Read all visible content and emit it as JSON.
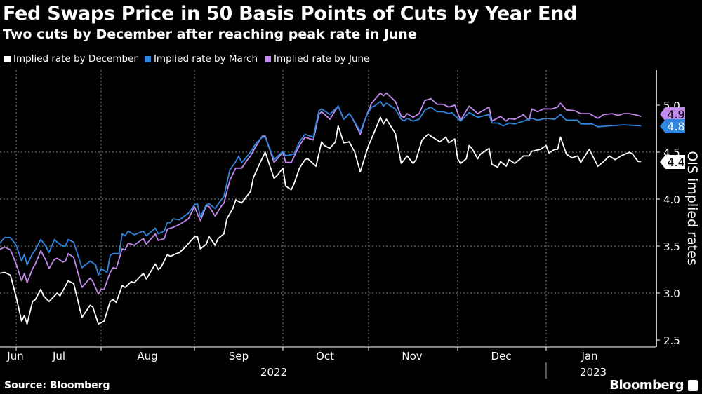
{
  "chart_data": {
    "type": "line",
    "title": "Fed Swaps Price in 50 Basis Points of Cuts by Year End",
    "subtitle": "Two cuts by December after reaching peak rate in June",
    "ylabel": "OIS implied rates",
    "ylim": [
      2.45,
      5.35
    ],
    "yticks": [
      "2.5",
      "3.0",
      "3.5",
      "4.0",
      "4.5",
      "5.0"
    ],
    "xticks": [
      "Jun",
      "Jul",
      "Aug",
      "Sep",
      "Oct",
      "Nov",
      "Dec",
      "Jan"
    ],
    "years": [
      "2022",
      "2023"
    ],
    "grid": true,
    "legend_position": "top-left",
    "series": [
      {
        "name": "Implied rate by December",
        "color": "#ffffff",
        "end_label": "4.4",
        "x": [
          "2022-06-25",
          "2022-06-27",
          "2022-06-29",
          "2022-07-01",
          "2022-07-03",
          "2022-07-04",
          "2022-07-05",
          "2022-07-07",
          "2022-07-08",
          "2022-07-10",
          "2022-07-11",
          "2022-07-13",
          "2022-07-16",
          "2022-07-17",
          "2022-07-20",
          "2022-07-22",
          "2022-07-25",
          "2022-07-28",
          "2022-07-29",
          "2022-07-31",
          "2022-08-02",
          "2022-08-04",
          "2022-08-05",
          "2022-08-06",
          "2022-08-08",
          "2022-08-09",
          "2022-08-11",
          "2022-08-12",
          "2022-08-15",
          "2022-08-16",
          "2022-08-19",
          "2022-08-20",
          "2022-08-21",
          "2022-08-23",
          "2022-08-24",
          "2022-08-26",
          "2022-08-27",
          "2022-08-29",
          "2022-09-01",
          "2022-09-02",
          "2022-09-03",
          "2022-09-05",
          "2022-09-06",
          "2022-09-08",
          "2022-09-09",
          "2022-09-11",
          "2022-09-12",
          "2022-09-14",
          "2022-09-15",
          "2022-09-17",
          "2022-09-19",
          "2022-09-20",
          "2022-09-21",
          "2022-09-23",
          "2022-09-25",
          "2022-09-28",
          "2022-09-29",
          "2022-10-01",
          "2022-10-02",
          "2022-10-04",
          "2022-10-05",
          "2022-10-07",
          "2022-10-09",
          "2022-10-10",
          "2022-10-13",
          "2022-10-15",
          "2022-10-16",
          "2022-10-18",
          "2022-10-20",
          "2022-10-21",
          "2022-10-23",
          "2022-10-25",
          "2022-10-27",
          "2022-10-29",
          "2022-10-31",
          "2022-11-01",
          "2022-11-03",
          "2022-11-05",
          "2022-11-06",
          "2022-11-07",
          "2022-11-10",
          "2022-11-12",
          "2022-11-14",
          "2022-11-16",
          "2022-11-17",
          "2022-11-19",
          "2022-11-21",
          "2022-11-24",
          "2022-11-25",
          "2022-11-27",
          "2022-11-28",
          "2022-11-30",
          "2022-12-01",
          "2022-12-02",
          "2022-12-04",
          "2022-12-05",
          "2022-12-06",
          "2022-12-08",
          "2022-12-09",
          "2022-12-12",
          "2022-12-13",
          "2022-12-15",
          "2022-12-16",
          "2022-12-18",
          "2022-12-19",
          "2022-12-21",
          "2022-12-23",
          "2022-12-24",
          "2022-12-26",
          "2022-12-27",
          "2022-12-30",
          "2023-01-01",
          "2023-01-02",
          "2023-01-04",
          "2023-01-05",
          "2023-01-06",
          "2023-01-08",
          "2023-01-10",
          "2023-01-12",
          "2023-01-13",
          "2023-01-16",
          "2023-01-19",
          "2023-01-21",
          "2023-01-23",
          "2023-01-25",
          "2023-01-27",
          "2023-01-30",
          "2023-01-31",
          "2023-02-02",
          "2023-02-03"
        ],
        "values": [
          3.21,
          3.22,
          3.19,
          2.96,
          2.7,
          2.76,
          2.67,
          2.91,
          2.93,
          3.04,
          2.97,
          2.91,
          3.0,
          2.97,
          3.13,
          3.1,
          2.74,
          2.87,
          2.85,
          2.67,
          2.7,
          2.91,
          2.93,
          2.9,
          3.08,
          3.06,
          3.12,
          3.11,
          3.21,
          3.15,
          3.31,
          3.25,
          3.28,
          3.41,
          3.39,
          3.42,
          3.43,
          3.49,
          3.6,
          3.6,
          3.47,
          3.52,
          3.6,
          3.51,
          3.58,
          3.63,
          3.79,
          3.9,
          3.99,
          3.96,
          4.04,
          4.08,
          4.23,
          4.37,
          4.5,
          4.22,
          4.25,
          4.33,
          4.14,
          4.1,
          4.16,
          4.33,
          4.42,
          4.43,
          4.35,
          4.61,
          4.57,
          4.54,
          4.61,
          4.78,
          4.6,
          4.61,
          4.5,
          4.29,
          4.48,
          4.57,
          4.72,
          4.87,
          4.8,
          4.85,
          4.7,
          4.38,
          4.46,
          4.38,
          4.42,
          4.63,
          4.69,
          4.63,
          4.61,
          4.66,
          4.6,
          4.64,
          4.43,
          4.38,
          4.43,
          4.57,
          4.54,
          4.43,
          4.48,
          4.54,
          4.37,
          4.34,
          4.4,
          4.35,
          4.42,
          4.38,
          4.43,
          4.46,
          4.46,
          4.51,
          4.53,
          4.57,
          4.49,
          4.53,
          4.53,
          4.66,
          4.48,
          4.44,
          4.46,
          4.39,
          4.53,
          4.35,
          4.4,
          4.46,
          4.42,
          4.46,
          4.5,
          4.48,
          4.4,
          4.4
        ]
      },
      {
        "name": "Implied rate by March",
        "color": "#2e86de",
        "end_label": "4.8",
        "x": [
          "2022-06-25",
          "2022-06-27",
          "2022-06-29",
          "2022-07-01",
          "2022-07-03",
          "2022-07-04",
          "2022-07-05",
          "2022-07-07",
          "2022-07-08",
          "2022-07-10",
          "2022-07-12",
          "2022-07-13",
          "2022-07-15",
          "2022-07-16",
          "2022-07-18",
          "2022-07-19",
          "2022-07-20",
          "2022-07-22",
          "2022-07-25",
          "2022-07-28",
          "2022-07-30",
          "2022-07-31",
          "2022-08-01",
          "2022-08-03",
          "2022-08-04",
          "2022-08-05",
          "2022-08-07",
          "2022-08-08",
          "2022-08-09",
          "2022-08-10",
          "2022-08-12",
          "2022-08-15",
          "2022-08-16",
          "2022-08-19",
          "2022-08-20",
          "2022-08-22",
          "2022-08-23",
          "2022-08-24",
          "2022-08-25",
          "2022-08-27",
          "2022-08-30",
          "2022-09-01",
          "2022-09-02",
          "2022-09-03",
          "2022-09-05",
          "2022-09-06",
          "2022-09-08",
          "2022-09-10",
          "2022-09-11",
          "2022-09-13",
          "2022-09-15",
          "2022-09-16",
          "2022-09-17",
          "2022-09-19",
          "2022-09-20",
          "2022-09-22",
          "2022-09-24",
          "2022-09-25",
          "2022-09-28",
          "2022-10-01",
          "2022-10-02",
          "2022-10-05",
          "2022-10-07",
          "2022-10-09",
          "2022-10-12",
          "2022-10-14",
          "2022-10-15",
          "2022-10-18",
          "2022-10-21",
          "2022-10-23",
          "2022-10-25",
          "2022-10-26",
          "2022-10-29",
          "2022-10-31",
          "2022-11-02",
          "2022-11-03",
          "2022-11-05",
          "2022-11-06",
          "2022-11-07",
          "2022-11-10",
          "2022-11-12",
          "2022-11-13",
          "2022-11-14",
          "2022-11-16",
          "2022-11-18",
          "2022-11-20",
          "2022-11-22",
          "2022-11-24",
          "2022-11-26",
          "2022-11-28",
          "2022-11-29",
          "2022-12-02",
          "2022-12-05",
          "2022-12-08",
          "2022-12-12",
          "2022-12-13",
          "2022-12-15",
          "2022-12-17",
          "2022-12-19",
          "2022-12-21",
          "2022-12-24",
          "2022-12-27",
          "2022-12-29",
          "2023-01-01",
          "2023-01-04",
          "2023-01-06",
          "2023-01-08",
          "2023-01-12",
          "2023-01-13",
          "2023-01-17",
          "2023-01-19",
          "2023-01-23",
          "2023-01-28",
          "2023-02-03"
        ],
        "values": [
          3.52,
          3.59,
          3.59,
          3.51,
          3.34,
          3.41,
          3.3,
          3.42,
          3.46,
          3.57,
          3.49,
          3.43,
          3.57,
          3.54,
          3.5,
          3.5,
          3.57,
          3.54,
          3.27,
          3.34,
          3.3,
          3.19,
          3.26,
          3.22,
          3.4,
          3.42,
          3.42,
          3.63,
          3.61,
          3.66,
          3.62,
          3.66,
          3.61,
          3.69,
          3.63,
          3.66,
          3.75,
          3.75,
          3.79,
          3.78,
          3.85,
          3.94,
          3.95,
          3.81,
          3.94,
          3.95,
          3.9,
          3.99,
          4.03,
          4.31,
          4.4,
          4.46,
          4.39,
          4.46,
          4.5,
          4.6,
          4.66,
          4.66,
          4.42,
          4.51,
          4.46,
          4.48,
          4.61,
          4.69,
          4.66,
          4.94,
          4.96,
          4.9,
          4.99,
          4.85,
          4.91,
          4.87,
          4.72,
          4.87,
          4.98,
          4.99,
          5.04,
          4.99,
          5.02,
          4.96,
          4.85,
          4.83,
          4.86,
          4.83,
          4.85,
          4.95,
          4.98,
          4.93,
          4.93,
          4.91,
          4.92,
          4.83,
          4.92,
          4.87,
          4.9,
          4.81,
          4.81,
          4.78,
          4.81,
          4.8,
          4.83,
          4.86,
          4.84,
          4.86,
          4.85,
          4.9,
          4.84,
          4.84,
          4.8,
          4.8,
          4.77,
          4.78,
          4.79,
          4.78
        ]
      },
      {
        "name": "Implied rate by June",
        "color": "#c489ec",
        "end_label": "4.9",
        "x": [
          "2022-06-25",
          "2022-06-27",
          "2022-06-29",
          "2022-07-01",
          "2022-07-03",
          "2022-07-04",
          "2022-07-05",
          "2022-07-07",
          "2022-07-08",
          "2022-07-10",
          "2022-07-12",
          "2022-07-13",
          "2022-07-15",
          "2022-07-16",
          "2022-07-18",
          "2022-07-19",
          "2022-07-20",
          "2022-07-22",
          "2022-07-25",
          "2022-07-28",
          "2022-07-29",
          "2022-07-31",
          "2022-08-01",
          "2022-08-02",
          "2022-08-04",
          "2022-08-05",
          "2022-08-06",
          "2022-08-08",
          "2022-08-09",
          "2022-08-10",
          "2022-08-12",
          "2022-08-15",
          "2022-08-16",
          "2022-08-19",
          "2022-08-20",
          "2022-08-22",
          "2022-08-23",
          "2022-08-25",
          "2022-08-27",
          "2022-08-30",
          "2022-09-01",
          "2022-09-03",
          "2022-09-05",
          "2022-09-06",
          "2022-09-08",
          "2022-09-10",
          "2022-09-11",
          "2022-09-13",
          "2022-09-15",
          "2022-09-17",
          "2022-09-19",
          "2022-09-20",
          "2022-09-22",
          "2022-09-24",
          "2022-09-25",
          "2022-09-28",
          "2022-10-01",
          "2022-10-02",
          "2022-10-04",
          "2022-10-07",
          "2022-10-09",
          "2022-10-12",
          "2022-10-14",
          "2022-10-15",
          "2022-10-18",
          "2022-10-21",
          "2022-10-23",
          "2022-10-25",
          "2022-10-26",
          "2022-10-29",
          "2022-10-31",
          "2022-11-02",
          "2022-11-05",
          "2022-11-06",
          "2022-11-07",
          "2022-11-10",
          "2022-11-12",
          "2022-11-13",
          "2022-11-14",
          "2022-11-16",
          "2022-11-18",
          "2022-11-20",
          "2022-11-22",
          "2022-11-24",
          "2022-11-26",
          "2022-11-28",
          "2022-11-30",
          "2022-12-02",
          "2022-12-05",
          "2022-12-08",
          "2022-12-12",
          "2022-12-13",
          "2022-12-16",
          "2022-12-18",
          "2022-12-19",
          "2022-12-21",
          "2022-12-23",
          "2022-12-24",
          "2022-12-26",
          "2022-12-27",
          "2022-12-29",
          "2022-12-31",
          "2023-01-03",
          "2023-01-05",
          "2023-01-06",
          "2023-01-08",
          "2023-01-11",
          "2023-01-13",
          "2023-01-16",
          "2023-01-19",
          "2023-01-21",
          "2023-01-24",
          "2023-01-26",
          "2023-01-28",
          "2023-01-30",
          "2023-02-02",
          "2023-02-03"
        ],
        "values": [
          3.46,
          3.49,
          3.46,
          3.31,
          3.13,
          3.21,
          3.11,
          3.26,
          3.31,
          3.45,
          3.34,
          3.26,
          3.36,
          3.37,
          3.33,
          3.34,
          3.42,
          3.38,
          3.06,
          3.16,
          3.12,
          2.99,
          3.04,
          3.04,
          3.22,
          3.27,
          3.26,
          3.47,
          3.46,
          3.53,
          3.51,
          3.58,
          3.52,
          3.63,
          3.56,
          3.58,
          3.68,
          3.7,
          3.73,
          3.79,
          3.92,
          3.77,
          3.93,
          3.92,
          3.82,
          3.92,
          3.96,
          4.2,
          4.33,
          4.33,
          4.42,
          4.46,
          4.57,
          4.67,
          4.67,
          4.39,
          4.5,
          4.39,
          4.39,
          4.57,
          4.66,
          4.63,
          4.9,
          4.93,
          4.85,
          4.99,
          4.85,
          4.91,
          4.87,
          4.69,
          4.87,
          5.02,
          5.13,
          5.1,
          5.13,
          5.04,
          4.88,
          4.87,
          4.91,
          4.87,
          4.91,
          5.05,
          5.07,
          5.01,
          5.01,
          4.98,
          5.0,
          4.84,
          4.99,
          4.91,
          4.98,
          4.83,
          4.88,
          4.83,
          4.86,
          4.85,
          4.88,
          4.9,
          4.84,
          4.96,
          4.93,
          4.96,
          4.96,
          4.98,
          5.02,
          4.95,
          4.94,
          4.91,
          4.91,
          4.86,
          4.9,
          4.91,
          4.89,
          4.91,
          4.91,
          4.89,
          4.88
        ]
      }
    ]
  },
  "footer": {
    "source": "Source: Bloomberg",
    "logo": "Bloomberg"
  }
}
